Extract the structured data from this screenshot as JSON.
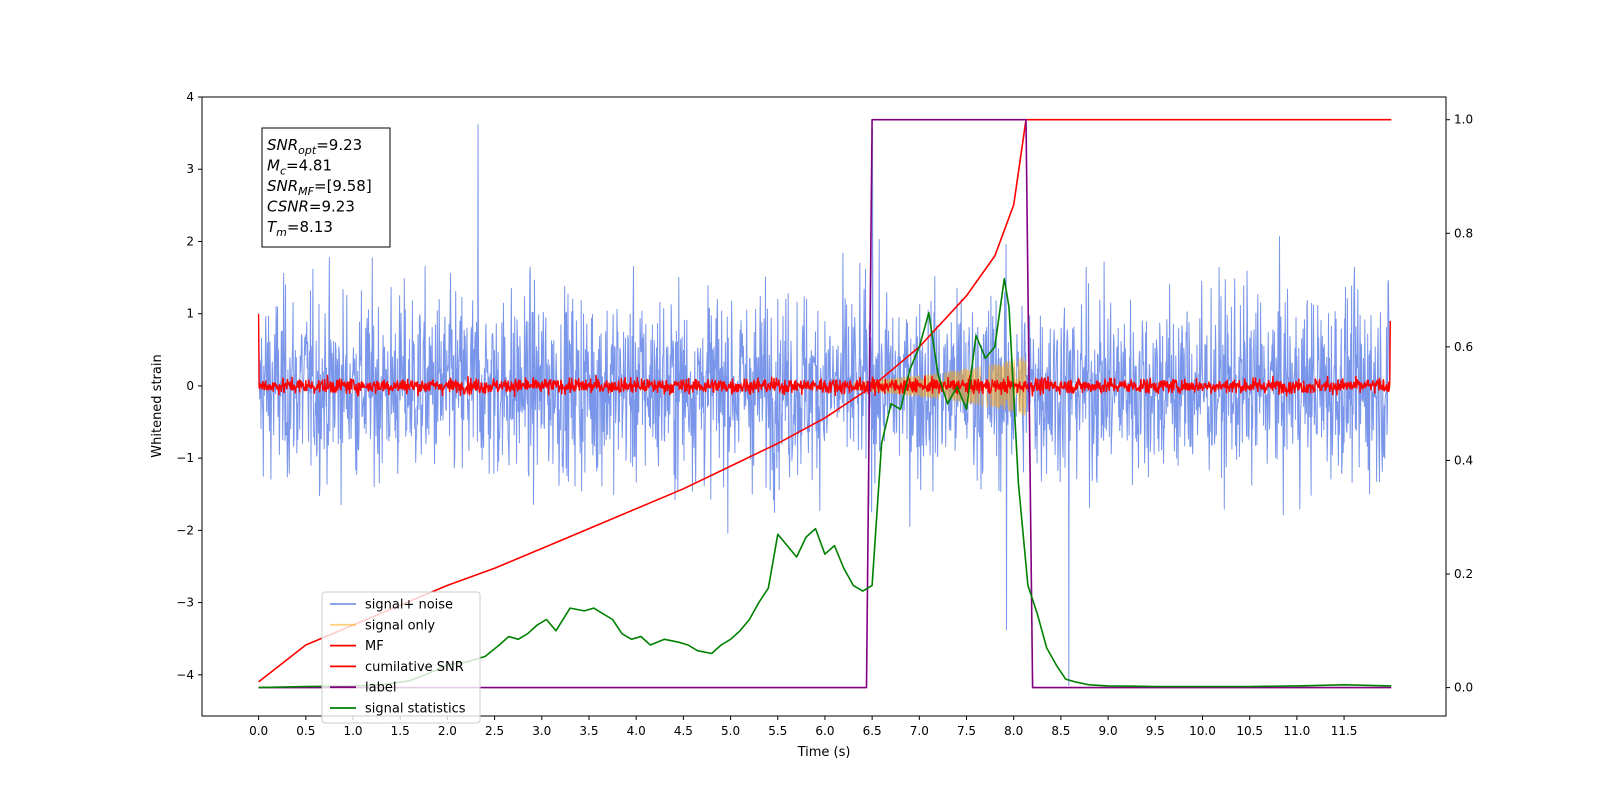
{
  "chart_data": {
    "type": "line",
    "xlabel": "Time (s)",
    "ylabel_left": "Whitened strain",
    "ylabel_right": "",
    "xlim": [
      -0.6,
      12.58
    ],
    "ylim_left": [
      -4.57,
      4.0
    ],
    "ylim_right": [
      -0.05,
      1.04
    ],
    "xticks": [
      0.0,
      0.5,
      1.0,
      1.5,
      2.0,
      2.5,
      3.0,
      3.5,
      4.0,
      4.5,
      5.0,
      5.5,
      6.0,
      6.5,
      7.0,
      7.5,
      8.0,
      8.5,
      9.0,
      9.5,
      10.0,
      10.5,
      11.0,
      11.5
    ],
    "xtick_labels": [
      "0.0",
      "0.5",
      "1.0",
      "1.5",
      "2.0",
      "2.5",
      "3.0",
      "3.5",
      "4.0",
      "4.5",
      "5.0",
      "5.5",
      "6.0",
      "6.5",
      "7.0",
      "7.5",
      "8.0",
      "8.5",
      "9.0",
      "9.5",
      "10.0",
      "10.5",
      "11.0",
      "11.5"
    ],
    "yticks_left": [
      -4,
      -3,
      -2,
      -1,
      0,
      1,
      2,
      3,
      4
    ],
    "yticks_left_labels": [
      "−4",
      "−3",
      "−2",
      "−1",
      "0",
      "1",
      "2",
      "3",
      "4"
    ],
    "yticks_right": [
      0.0,
      0.2,
      0.4,
      0.6,
      0.8,
      1.0
    ],
    "yticks_right_labels": [
      "0.0",
      "0.2",
      "0.4",
      "0.6",
      "0.8",
      "1.0"
    ],
    "grid": false,
    "legend_position": "lower-left",
    "annotation": {
      "lines": [
        {
          "base": "SNR",
          "sub": "opt",
          "value": "=9.23"
        },
        {
          "base": "M",
          "sub": "c",
          "value": "=4.81"
        },
        {
          "base": "SNR",
          "sub": "MF",
          "value": "=[9.58]"
        },
        {
          "base": "CSNR",
          "sub": "",
          "value": "=9.23"
        },
        {
          "base": "T",
          "sub": "m",
          "value": "=8.13"
        }
      ]
    },
    "series": [
      {
        "name": "signal+ noise",
        "axis": "left",
        "color": "#4169e1",
        "opacity": 0.7,
        "kind": "noise",
        "x_range": [
          0.0,
          11.99
        ],
        "amplitude_typical": 1.55,
        "max": 3.62,
        "min": -3.45
      },
      {
        "name": "signal only",
        "axis": "left",
        "color": "#ffa500",
        "opacity": 0.5,
        "kind": "chirp",
        "x_range": [
          6.3,
          8.13
        ],
        "envelope_x": [
          6.3,
          6.8,
          7.2,
          7.6,
          7.9,
          8.13
        ],
        "envelope_y": [
          0.05,
          0.12,
          0.18,
          0.26,
          0.33,
          0.42
        ]
      },
      {
        "name": "MF",
        "axis": "left",
        "color": "#ff0000",
        "kind": "noise",
        "x_range": [
          0.0,
          11.99
        ],
        "amplitude_typical": 0.13,
        "start_value": 1.0,
        "end_value": 0.9
      },
      {
        "name": "cumilative SNR",
        "axis": "right",
        "color": "#ff0000",
        "x": [
          0.0,
          0.5,
          1.0,
          1.5,
          2.0,
          2.5,
          3.0,
          3.5,
          4.0,
          4.5,
          5.0,
          5.5,
          6.0,
          6.5,
          7.0,
          7.5,
          7.8,
          8.0,
          8.13,
          8.13,
          12.0
        ],
        "y": [
          0.01,
          0.075,
          0.11,
          0.145,
          0.18,
          0.21,
          0.245,
          0.28,
          0.315,
          0.35,
          0.39,
          0.43,
          0.475,
          0.53,
          0.6,
          0.69,
          0.76,
          0.85,
          1.0,
          1.0,
          1.0
        ]
      },
      {
        "name": "label",
        "axis": "right",
        "color": "#800080",
        "x": [
          0.0,
          6.44,
          6.5,
          8.13,
          8.2,
          12.0
        ],
        "y": [
          0.0,
          0.0,
          1.0,
          1.0,
          0.0,
          0.0
        ]
      },
      {
        "name": "signal statistics",
        "axis": "right",
        "color": "#008000",
        "x": [
          0.0,
          0.5,
          1.0,
          1.3,
          1.6,
          1.8,
          2.0,
          2.2,
          2.4,
          2.55,
          2.65,
          2.75,
          2.85,
          2.95,
          3.05,
          3.15,
          3.3,
          3.45,
          3.55,
          3.65,
          3.75,
          3.85,
          3.95,
          4.05,
          4.15,
          4.3,
          4.45,
          4.55,
          4.65,
          4.8,
          4.9,
          5.0,
          5.1,
          5.2,
          5.3,
          5.4,
          5.5,
          5.6,
          5.7,
          5.8,
          5.9,
          6.0,
          6.1,
          6.2,
          6.3,
          6.4,
          6.5,
          6.6,
          6.7,
          6.8,
          6.9,
          7.0,
          7.1,
          7.2,
          7.3,
          7.4,
          7.5,
          7.6,
          7.7,
          7.8,
          7.9,
          7.95,
          8.05,
          8.15,
          8.25,
          8.35,
          8.45,
          8.55,
          8.65,
          8.8,
          9.0,
          9.5,
          10.0,
          10.5,
          11.0,
          11.5,
          12.0
        ],
        "y": [
          0.0,
          0.002,
          0.003,
          0.005,
          0.012,
          0.025,
          0.04,
          0.045,
          0.055,
          0.075,
          0.09,
          0.085,
          0.095,
          0.11,
          0.12,
          0.1,
          0.14,
          0.135,
          0.14,
          0.13,
          0.12,
          0.095,
          0.085,
          0.09,
          0.075,
          0.085,
          0.08,
          0.075,
          0.065,
          0.06,
          0.075,
          0.085,
          0.1,
          0.12,
          0.15,
          0.175,
          0.27,
          0.25,
          0.23,
          0.265,
          0.28,
          0.235,
          0.25,
          0.21,
          0.18,
          0.17,
          0.18,
          0.43,
          0.5,
          0.49,
          0.56,
          0.6,
          0.66,
          0.55,
          0.5,
          0.53,
          0.49,
          0.62,
          0.58,
          0.6,
          0.72,
          0.67,
          0.36,
          0.18,
          0.13,
          0.07,
          0.04,
          0.015,
          0.01,
          0.005,
          0.003,
          0.002,
          0.002,
          0.002,
          0.003,
          0.005,
          0.003
        ]
      }
    ]
  }
}
